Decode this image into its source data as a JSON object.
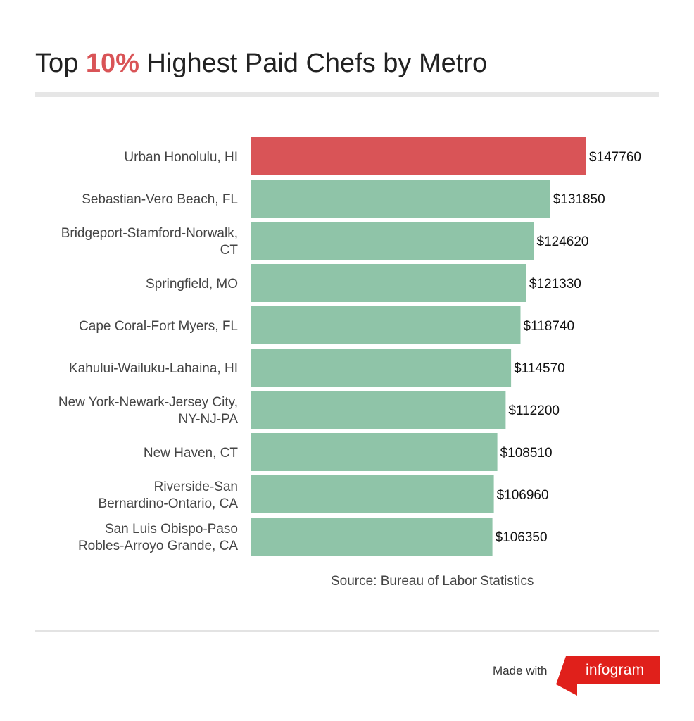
{
  "header": {
    "title_pre": "Top ",
    "title_highlight": "10%",
    "title_post": " Highest Paid Chefs by Metro"
  },
  "chart_data": {
    "type": "bar",
    "orientation": "horizontal",
    "categories": [
      [
        "Urban Honolulu, HI"
      ],
      [
        "Sebastian-Vero Beach, FL"
      ],
      [
        "Bridgeport-Stamford-Norwalk,",
        "CT"
      ],
      [
        "Springfield, MO"
      ],
      [
        "Cape Coral-Fort Myers, FL"
      ],
      [
        "Kahului-Wailuku-Lahaina, HI"
      ],
      [
        "New York-Newark-Jersey City,",
        "NY-NJ-PA"
      ],
      [
        "New Haven, CT"
      ],
      [
        "Riverside-San",
        "Bernardino-Ontario, CA"
      ],
      [
        "San Luis Obispo-Paso",
        "Robles-Arroyo Grande, CA"
      ]
    ],
    "values": [
      147760,
      131850,
      124620,
      121330,
      118740,
      114570,
      112200,
      108510,
      106960,
      106350
    ],
    "value_labels": [
      "$147760",
      "$131850",
      "$124620",
      "$121330",
      "$118740",
      "$114570",
      "$112200",
      "$108510",
      "$106960",
      "$106350"
    ],
    "highlight_index": 0,
    "colors": {
      "highlight": "#d95457",
      "bar": "#8fc4a8",
      "label": "#444444",
      "value": "#111111"
    },
    "grid": false
  },
  "source": "Source: Bureau of Labor Statistics",
  "footer": {
    "made_with": "Made with",
    "brand": "infogram",
    "brand_color": "#e0201b"
  }
}
